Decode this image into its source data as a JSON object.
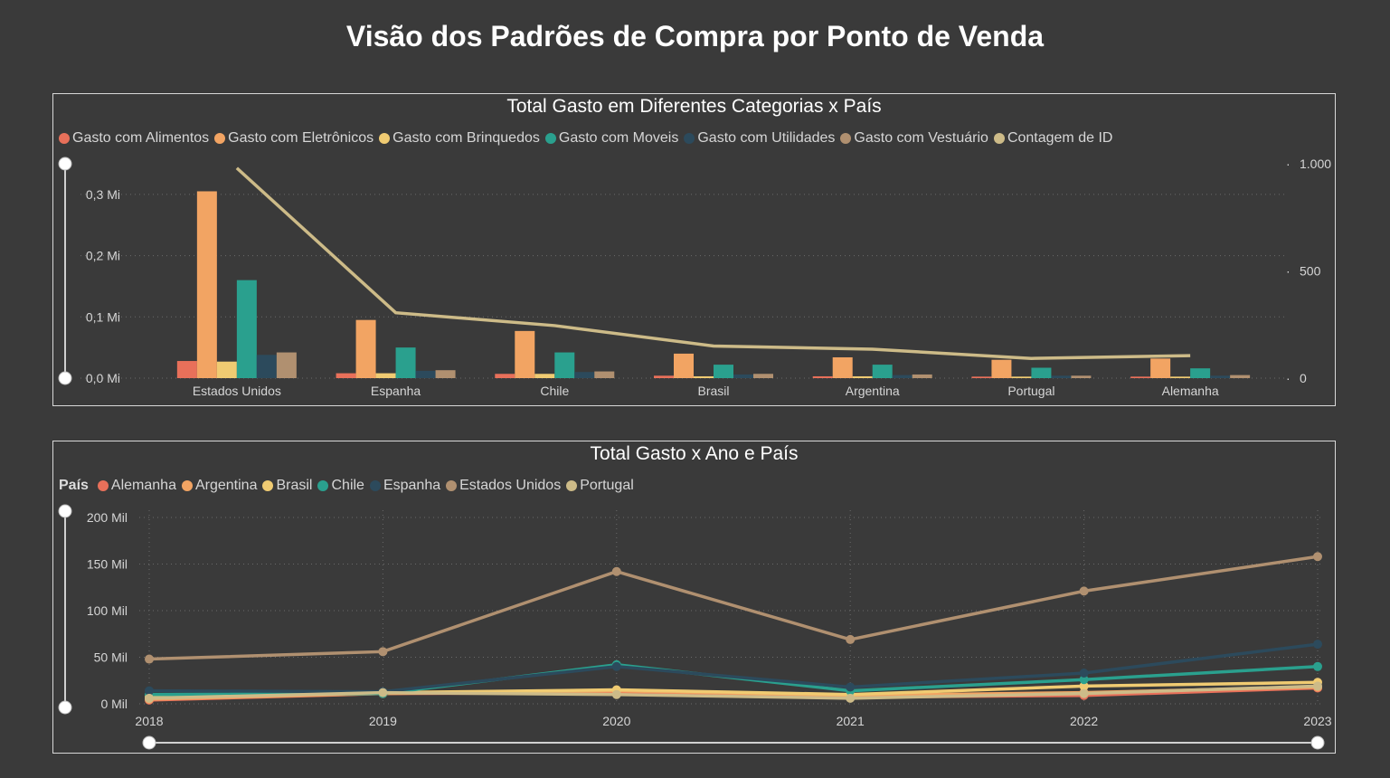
{
  "page": {
    "title": "Visão dos Padrões de Compra por Ponto de Venda"
  },
  "chart_data": [
    {
      "type": "bar",
      "title": "Total Gasto em Diferentes Categorias x País",
      "categories": [
        "Estados Unidos",
        "Espanha",
        "Chile",
        "Brasil",
        "Argentina",
        "Portugal",
        "Alemanha"
      ],
      "series": [
        {
          "name": "Gasto com Alimentos",
          "color": "#e8705a",
          "values": [
            28000,
            8000,
            7000,
            4000,
            3000,
            2500,
            2500
          ]
        },
        {
          "name": "Gasto com Eletrônicos",
          "color": "#f2a463",
          "values": [
            305000,
            95000,
            77000,
            40000,
            34000,
            30000,
            32000
          ]
        },
        {
          "name": "Gasto com Brinquedos",
          "color": "#f0cb72",
          "values": [
            27000,
            8000,
            7000,
            3000,
            3000,
            2500,
            2500
          ]
        },
        {
          "name": "Gasto com Moveis",
          "color": "#2aa08e",
          "values": [
            160000,
            50000,
            42000,
            22000,
            22000,
            17000,
            16000
          ]
        },
        {
          "name": "Gasto com Utilidades",
          "color": "#2c4a5c",
          "values": [
            38000,
            12000,
            10000,
            6000,
            5000,
            4000,
            4000
          ]
        },
        {
          "name": "Gasto com Vestuário",
          "color": "#b09070",
          "values": [
            42000,
            13000,
            11000,
            7000,
            6000,
            4000,
            5000
          ]
        }
      ],
      "line_series": {
        "name": "Contagem de ID",
        "color": "#cdbb88",
        "axis": "right",
        "values": [
          980,
          305,
          245,
          150,
          135,
          92,
          105
        ]
      },
      "y_left": {
        "ylim": [
          0,
          350000
        ],
        "ticks": [
          0,
          100000,
          200000,
          300000
        ],
        "tick_labels": [
          "0,0 Mi",
          "0,1 Mi",
          "0,2 Mi",
          "0,3 Mi"
        ]
      },
      "y_right": {
        "ylim": [
          0,
          1000
        ],
        "ticks": [
          0,
          500,
          1000
        ],
        "tick_labels": [
          "0",
          "500",
          "1.000"
        ]
      },
      "grid": true,
      "legend": "top-left"
    },
    {
      "type": "line",
      "title": "Total Gasto x Ano e País",
      "legend_title": "País",
      "x": [
        "2018",
        "2019",
        "2020",
        "2021",
        "2022",
        "2023"
      ],
      "series": [
        {
          "name": "Alemanha",
          "color": "#e8705a",
          "values": [
            4000,
            11000,
            12000,
            7000,
            9000,
            17000
          ]
        },
        {
          "name": "Argentina",
          "color": "#f2a463",
          "values": [
            5000,
            11000,
            14000,
            9000,
            12000,
            18000
          ]
        },
        {
          "name": "Brasil",
          "color": "#f0cb72",
          "values": [
            8000,
            12000,
            15000,
            10000,
            19000,
            23000
          ]
        },
        {
          "name": "Chile",
          "color": "#2aa08e",
          "values": [
            10000,
            11000,
            42000,
            14000,
            26000,
            40000
          ]
        },
        {
          "name": "Espanha",
          "color": "#2c4a5c",
          "values": [
            14000,
            13000,
            40000,
            18000,
            33000,
            64000
          ]
        },
        {
          "name": "Estados Unidos",
          "color": "#b09070",
          "values": [
            48000,
            56000,
            142000,
            69000,
            121000,
            158000
          ]
        },
        {
          "name": "Portugal",
          "color": "#cdbb88",
          "values": [
            6000,
            12000,
            10000,
            6000,
            11000,
            19000
          ]
        }
      ],
      "y": {
        "ylim": [
          0,
          200000
        ],
        "ticks": [
          0,
          50000,
          100000,
          150000,
          200000
        ],
        "tick_labels": [
          "0 Mil",
          "50 Mil",
          "100 Mil",
          "150 Mil",
          "200 Mil"
        ]
      },
      "grid": true,
      "legend": "top-left"
    }
  ]
}
